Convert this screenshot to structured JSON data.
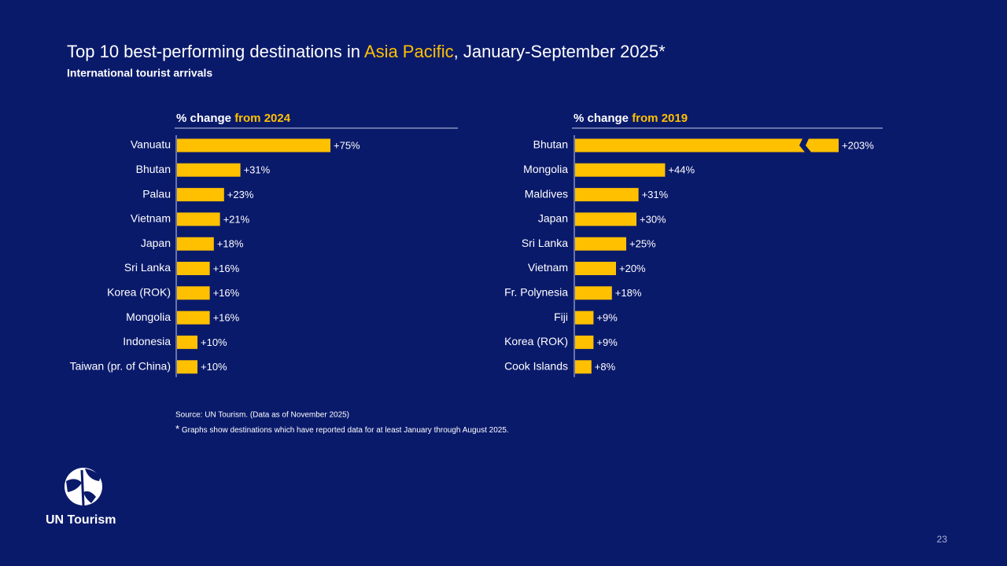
{
  "title": {
    "prefix": "Top 10 best-performing destinations in ",
    "highlight": "Asia Pacific",
    "suffix": ", January-September 2025*"
  },
  "subtitle": "International tourist arrivals",
  "chart_data": [
    {
      "type": "bar",
      "header": "% change ",
      "header_highlight": "from 2024",
      "color": "#ffc000",
      "categories": [
        "Vanuatu",
        "Bhutan",
        "Palau",
        "Vietnam",
        "Japan",
        "Sri Lanka",
        "Korea (ROK)",
        "Mongolia",
        "Indonesia",
        "Taiwan (pr. of China)"
      ],
      "values": [
        75,
        31,
        23,
        21,
        18,
        16,
        16,
        16,
        10,
        10
      ],
      "value_labels": [
        "+75%",
        "+31%",
        "+23%",
        "+21%",
        "+18%",
        "+16%",
        "+16%",
        "+16%",
        "+10%",
        "+10%"
      ]
    },
    {
      "type": "bar",
      "header": "% change ",
      "header_highlight": "from 2019",
      "color": "#ffc000",
      "categories": [
        "Bhutan",
        "Mongolia",
        "Maldives",
        "Japan",
        "Sri Lanka",
        "Vietnam",
        "Fr. Polynesia",
        "Fiji",
        "Korea (ROK)",
        "Cook Islands"
      ],
      "values": [
        203,
        44,
        31,
        30,
        25,
        20,
        18,
        9,
        9,
        8
      ],
      "value_labels": [
        "+203%",
        "+44%",
        "+31%",
        "+30%",
        "+25%",
        "+20%",
        "+18%",
        "+9%",
        "+9%",
        "+8%"
      ]
    }
  ],
  "source": "Source: UN Tourism. (Data as of November 2025)",
  "note_mark": "*",
  "note": " Graphs show destinations which have reported data for at least January through August 2025.",
  "logo": "UN Tourism",
  "page_number": "23"
}
